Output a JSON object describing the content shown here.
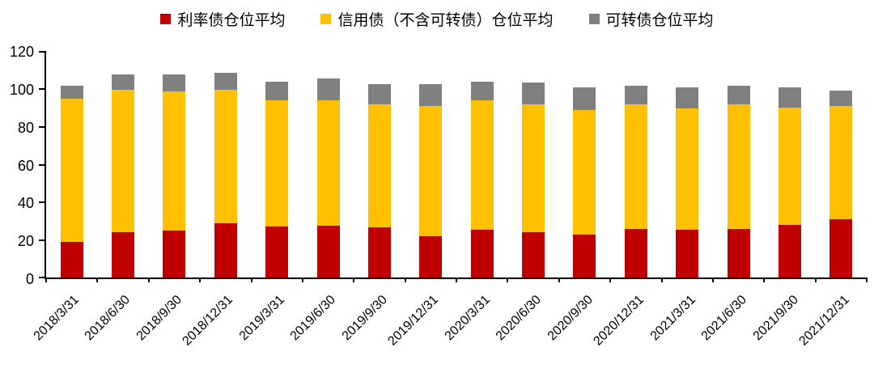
{
  "chart_data": {
    "type": "bar",
    "stacked": true,
    "title": "",
    "xlabel": "",
    "ylabel": "",
    "ylim": [
      0,
      120
    ],
    "yticks": [
      0,
      20,
      40,
      60,
      80,
      100,
      120
    ],
    "grid": false,
    "legend_position": "top",
    "categories": [
      "2018/3/31",
      "2018/6/30",
      "2018/9/30",
      "2018/12/31",
      "2019/3/31",
      "2019/6/30",
      "2019/9/30",
      "2019/12/31",
      "2020/3/31",
      "2020/6/30",
      "2020/9/30",
      "2020/12/31",
      "2021/3/31",
      "2021/6/30",
      "2021/9/30",
      "2021/12/31"
    ],
    "series": [
      {
        "name": "利率债仓位平均",
        "color": "#C00000",
        "values": [
          19,
          24,
          25,
          29,
          27,
          27.5,
          26.5,
          22,
          25.5,
          24,
          23,
          26,
          25.5,
          26,
          28,
          31
        ]
      },
      {
        "name": "信用债（不含可转债）仓位平均",
        "color": "#FFC000",
        "values": [
          76,
          76,
          74,
          71,
          67,
          66.5,
          65.5,
          69,
          68.5,
          68,
          66,
          66,
          64.5,
          66,
          62.5,
          60
        ]
      },
      {
        "name": "可转债仓位平均",
        "color": "#808080",
        "values": [
          7,
          8,
          9,
          9,
          10,
          12,
          11,
          12,
          10,
          11.5,
          12,
          10,
          11,
          10,
          10.5,
          8.5
        ]
      }
    ]
  }
}
